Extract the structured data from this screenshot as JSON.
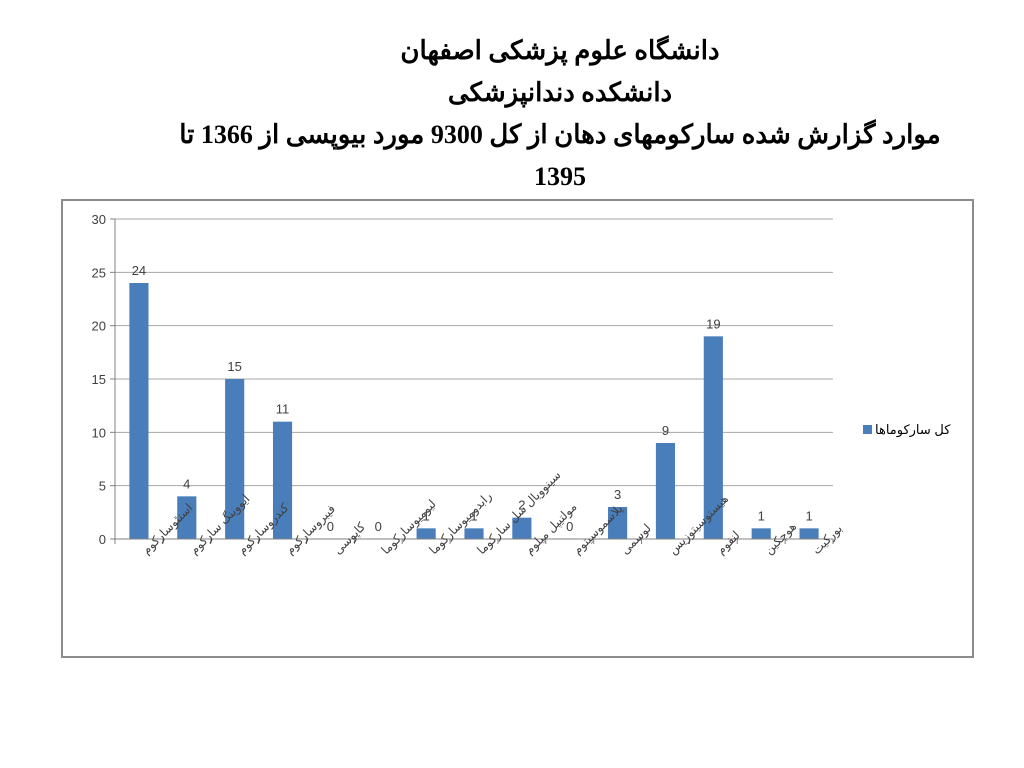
{
  "titles": {
    "line1": "دانشگاه علوم پزشکی اصفهان",
    "line2": "دانشکده دندانپزشکی",
    "line3": "موارد گزارش شده سارکومهای دهان از کل 9300 مورد بیوپسی از 1366 تا",
    "line4": "1395"
  },
  "chart_data": {
    "type": "bar",
    "categories": [
      "استئوسارکوم",
      "ایووینگ سارکوم",
      "کندروسارکوم",
      "فیبروسارکوم",
      "کاپوسی",
      "لیومیوسارکوما",
      "رابدومیوسارکوما",
      "سینوویال سل سارکوما",
      "مولتیپل میلوم",
      "پلاسموسیتوم",
      "لوسمی",
      "هیستوسیتوزیس",
      "لنفوم",
      "هوچکین",
      "بورکیت"
    ],
    "series": [
      {
        "name": "کل سارکوماها",
        "values": [
          24,
          4,
          15,
          11,
          0,
          0,
          1,
          1,
          2,
          0,
          3,
          9,
          19,
          1,
          1
        ]
      }
    ],
    "ylim": [
      0,
      30
    ],
    "yticks": [
      0,
      5,
      10,
      15,
      20,
      25,
      30
    ],
    "grid": true,
    "legend": "right",
    "bar_color": "#4a7ebb",
    "grid_color": "#a6a6a6",
    "text_color": "#404040"
  }
}
